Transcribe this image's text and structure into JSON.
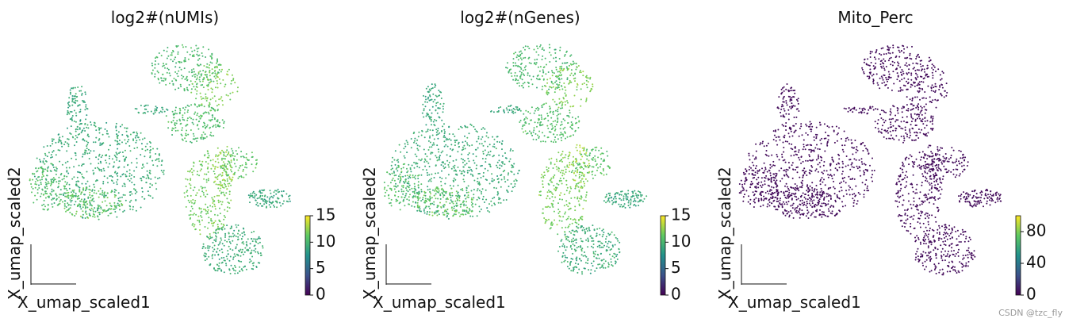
{
  "chart_data": [
    {
      "type": "scatter",
      "title": "log2#(nUMIs)",
      "xlabel": "X_umap_scaled1",
      "ylabel": "X_umap_scaled2",
      "colormap": "viridis",
      "clim": [
        0,
        15
      ],
      "cticks": [
        0,
        5,
        10,
        15
      ]
    },
    {
      "type": "scatter",
      "title": "log2#(nGenes)",
      "xlabel": "X_umap_scaled1",
      "ylabel": "X_umap_scaled2",
      "colormap": "viridis",
      "clim": [
        0,
        15
      ],
      "cticks": [
        0,
        5,
        10,
        15
      ]
    },
    {
      "type": "scatter",
      "title": "Mito_Perc",
      "xlabel": "X_umap_scaled1",
      "ylabel": "X_umap_scaled2",
      "colormap": "viridis",
      "clim": [
        0,
        100
      ],
      "cticks": [
        0,
        40,
        80
      ]
    }
  ],
  "watermark": "CSDN @tzc_fly"
}
